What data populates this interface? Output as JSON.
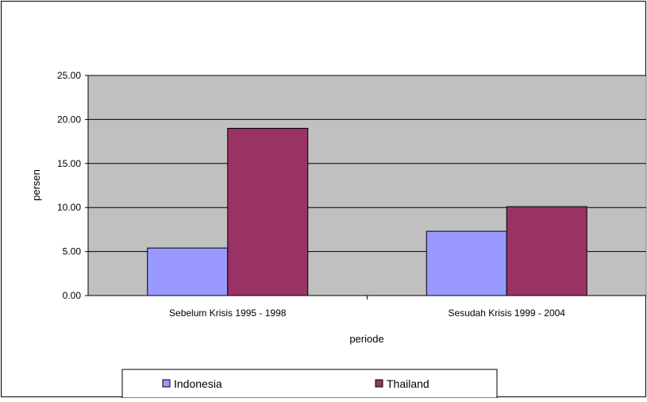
{
  "chart_data": {
    "type": "bar",
    "title": "",
    "xlabel": "periode",
    "ylabel": "persen",
    "categories": [
      "Sebelum Krisis 1995 - 1998",
      "Sesudah Krisis 1999 - 2004"
    ],
    "series": [
      {
        "name": "Indonesia",
        "values": [
          5.4,
          7.3
        ],
        "color": "#9999ff"
      },
      {
        "name": "Thailand",
        "values": [
          19.0,
          10.1
        ],
        "color": "#993366"
      }
    ],
    "ylim": [
      0,
      25
    ],
    "yticks": [
      "0.00",
      "5.00",
      "10.00",
      "15.00",
      "20.00",
      "25.00"
    ],
    "grid": true,
    "plot_background": "#c0c0c0",
    "legend_position": "bottom"
  }
}
